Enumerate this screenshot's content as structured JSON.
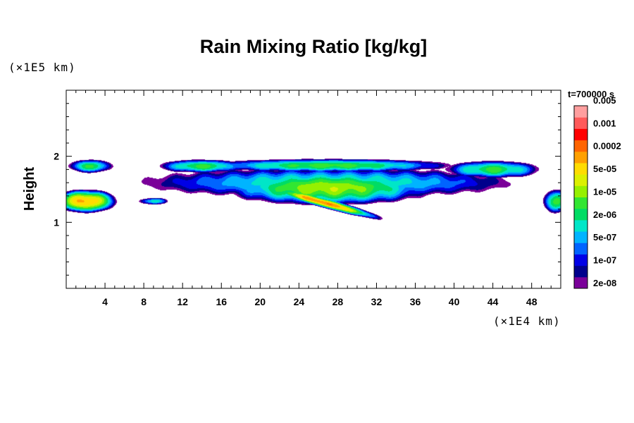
{
  "chart_data": {
    "type": "heatmap",
    "title": "Rain Mixing Ratio [kg/kg]",
    "ylabel": "Height",
    "xunit": "(×1E4 km)",
    "yunit": "(×1E5 km)",
    "time_label": "t=700000 s",
    "xlim": [
      0,
      51
    ],
    "ylim": [
      0,
      3
    ],
    "xticks": [
      4,
      8,
      12,
      16,
      20,
      24,
      28,
      32,
      36,
      40,
      44,
      48
    ],
    "xtick_labels": [
      "4",
      "8",
      "12",
      "16",
      "20",
      "24",
      "28",
      "32",
      "36",
      "40",
      "44",
      "48"
    ],
    "yticks": [
      1,
      2
    ],
    "ytick_labels": [
      "1",
      "2"
    ],
    "colorbar": {
      "colors": [
        "#7a0099",
        "#00008c",
        "#0000e6",
        "#0064ff",
        "#00b4ff",
        "#00e6c8",
        "#00dc64",
        "#32e632",
        "#96f000",
        "#dcf000",
        "#ffdc00",
        "#ffa000",
        "#ff6400",
        "#ff0000",
        "#ff5a5a",
        "#ff9f9f"
      ],
      "tick_labels": [
        "2e-08",
        "1e-07",
        "5e-07",
        "2e-06",
        "1e-05",
        "5e-05",
        "0.0002",
        "0.001",
        "0.005"
      ]
    },
    "fields": [
      {
        "cx": 26.5,
        "cy": 1.3,
        "sx": 6.0,
        "sy": 0.08,
        "amp": 5.5,
        "tilt": -0.04
      },
      {
        "cx": 27.0,
        "cy": 1.52,
        "sx": 11.0,
        "sy": 0.26,
        "amp": 4.0,
        "tilt": 0.0
      },
      {
        "cx": 27.0,
        "cy": 1.86,
        "sx": 13.0,
        "sy": 0.1,
        "amp": 3.4,
        "tilt": 0.0
      },
      {
        "cx": 27.0,
        "cy": 1.6,
        "sx": 19.0,
        "sy": 0.22,
        "amp": 2.8,
        "tilt": 0.0
      },
      {
        "cx": 2.0,
        "cy": 1.32,
        "sx": 3.3,
        "sy": 0.18,
        "amp": 5.2,
        "tilt": 0.0
      },
      {
        "cx": 2.5,
        "cy": 1.85,
        "sx": 2.3,
        "sy": 0.1,
        "amp": 3.2,
        "tilt": 0.0
      },
      {
        "cx": 14.0,
        "cy": 1.85,
        "sx": 4.5,
        "sy": 0.1,
        "amp": 3.3,
        "tilt": 0.0
      },
      {
        "cx": 44.0,
        "cy": 1.8,
        "sx": 5.0,
        "sy": 0.13,
        "amp": 3.3,
        "tilt": 0.0
      },
      {
        "cx": 50.5,
        "cy": 1.32,
        "sx": 1.3,
        "sy": 0.18,
        "amp": 3.6,
        "tilt": 0.0
      },
      {
        "cx": 9.0,
        "cy": 1.32,
        "sx": 1.5,
        "sy": 0.05,
        "amp": 2.5,
        "tilt": 0.0
      }
    ]
  }
}
